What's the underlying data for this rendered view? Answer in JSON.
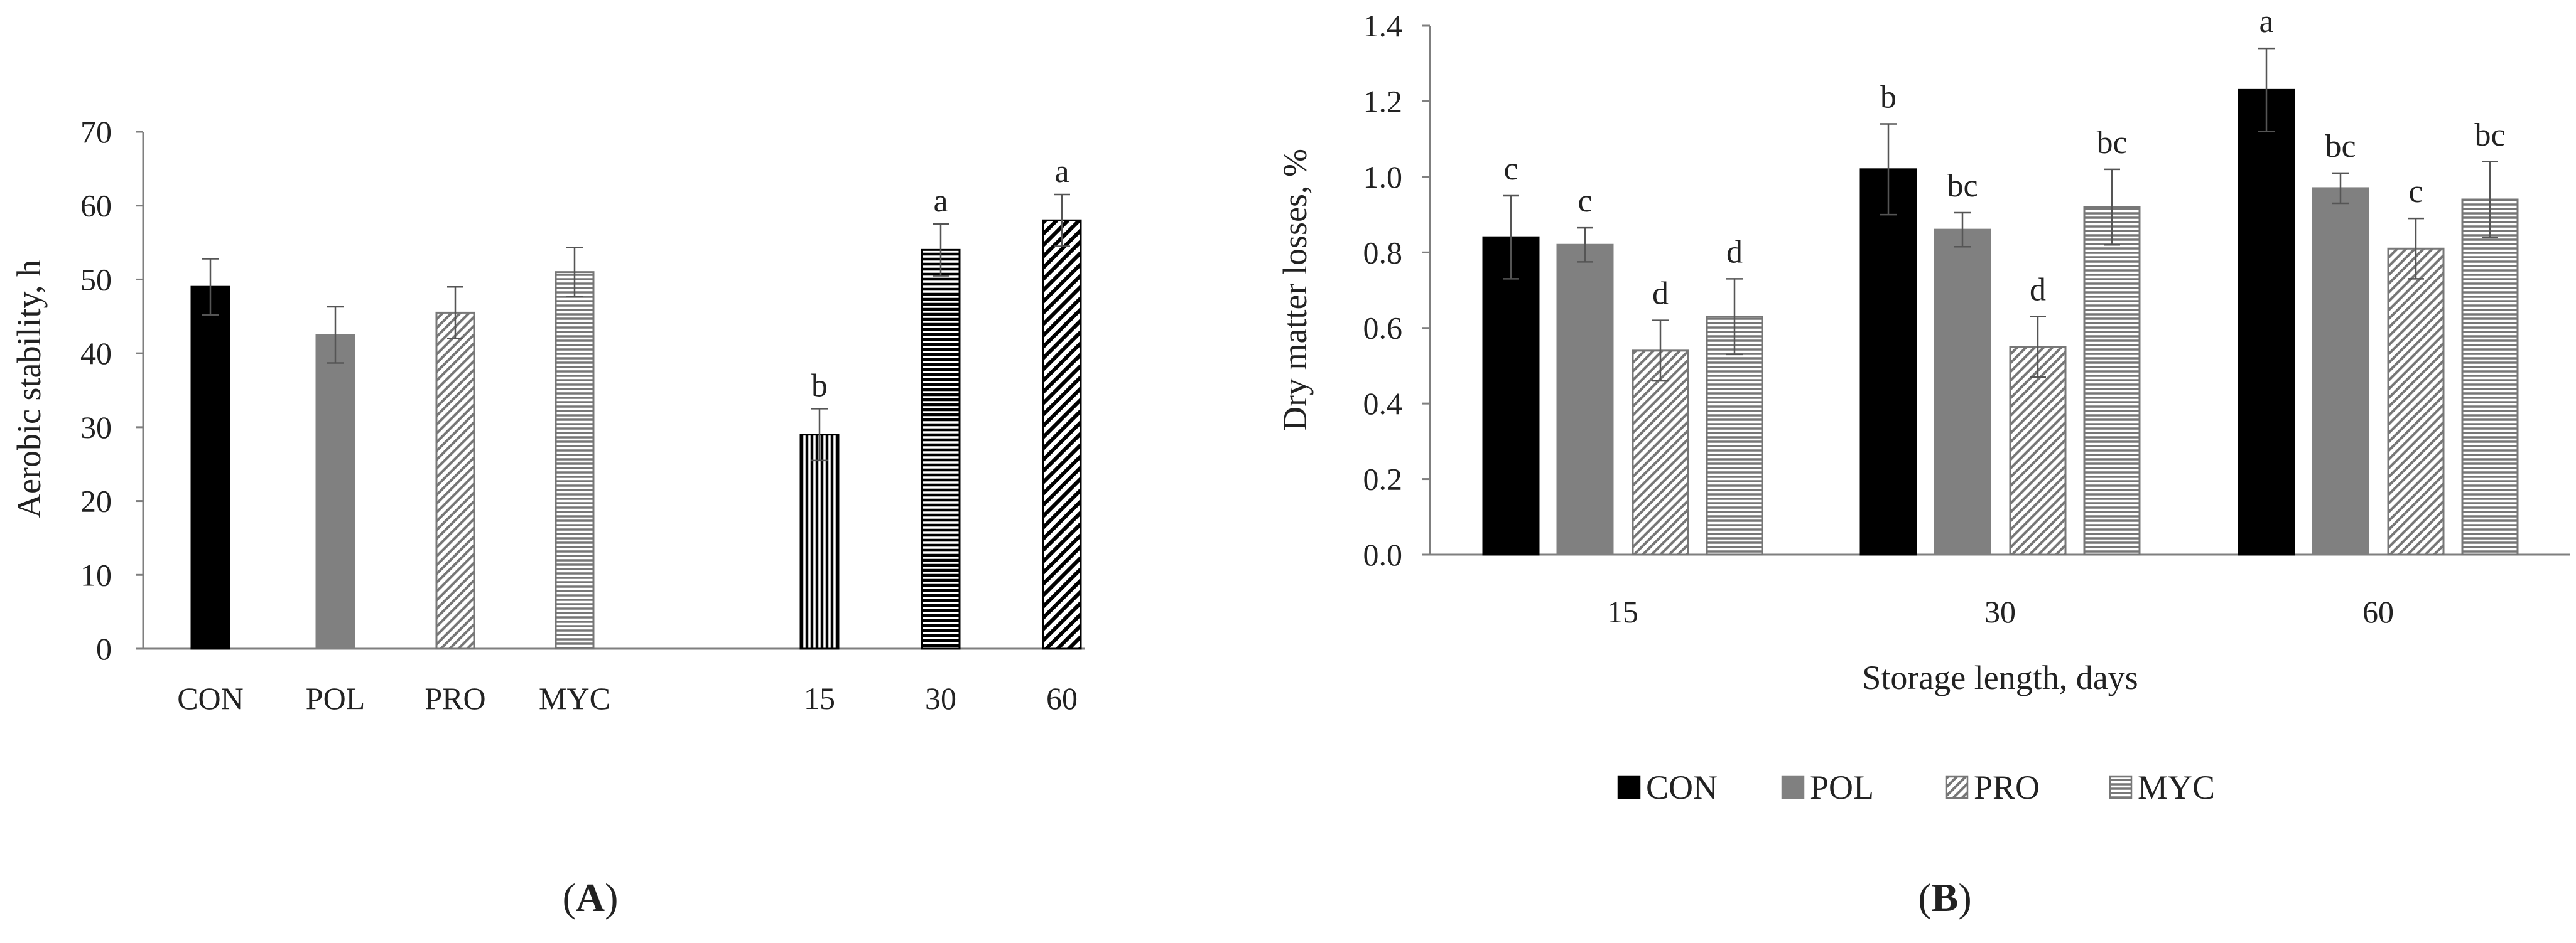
{
  "colors": {
    "con": "#000000",
    "pol": "#808080",
    "axis": "#7f7f7f",
    "pattern_stroke": "#777777"
  },
  "panel_labels": {
    "a": "A",
    "b": "B"
  },
  "chart_data": [
    {
      "id": "A",
      "type": "bar",
      "title": "",
      "xlabel": "",
      "ylabel": "Aerobic stability, h",
      "ylim": [
        0,
        70
      ],
      "yticks": [
        "0",
        "10",
        "20",
        "30",
        "40",
        "50",
        "60",
        "70"
      ],
      "grid": false,
      "groups": [
        {
          "name": "treatment",
          "categories": [
            "CON",
            "POL",
            "PRO",
            "MYC"
          ],
          "values": [
            49,
            42.5,
            45.5,
            51
          ],
          "errors": [
            3.8,
            3.8,
            3.5,
            3.3
          ],
          "sig_labels": [
            "",
            "",
            "",
            ""
          ],
          "fills": [
            "solid-black",
            "solid-gray",
            "diag-left",
            "horiz-gray"
          ]
        },
        {
          "name": "storage length",
          "categories": [
            "15",
            "30",
            "60"
          ],
          "values": [
            29,
            54,
            58
          ],
          "errors": [
            3.5,
            3.5,
            3.5
          ],
          "sig_labels": [
            "b",
            "a",
            "a"
          ],
          "fills": [
            "vert-black",
            "horiz-black",
            "diag-black"
          ]
        }
      ]
    },
    {
      "id": "B",
      "type": "bar",
      "title": "",
      "xlabel": "Storage length, days",
      "ylabel": "Dry matter losses, %",
      "ylim": [
        0,
        1.4
      ],
      "yticks": [
        "0.0",
        "0.2",
        "0.4",
        "0.6",
        "0.8",
        "1.0",
        "1.2",
        "1.4"
      ],
      "grid": false,
      "categories": [
        "15",
        "30",
        "60"
      ],
      "series": [
        {
          "name": "CON",
          "fill": "solid-black",
          "values": [
            0.84,
            1.02,
            1.23
          ],
          "errors": [
            0.11,
            0.12,
            0.11
          ],
          "sig_labels": [
            "c",
            "b",
            "a"
          ]
        },
        {
          "name": "POL",
          "fill": "solid-gray",
          "values": [
            0.82,
            0.86,
            0.97
          ],
          "errors": [
            0.045,
            0.045,
            0.04
          ],
          "sig_labels": [
            "c",
            "bc",
            "bc"
          ]
        },
        {
          "name": "PRO",
          "fill": "diag-left",
          "values": [
            0.54,
            0.55,
            0.81
          ],
          "errors": [
            0.08,
            0.08,
            0.08
          ],
          "sig_labels": [
            "d",
            "d",
            "c"
          ]
        },
        {
          "name": "MYC",
          "fill": "horiz-gray",
          "values": [
            0.63,
            0.92,
            0.94
          ],
          "errors": [
            0.1,
            0.1,
            0.1
          ],
          "sig_labels": [
            "d",
            "bc",
            "bc"
          ]
        }
      ],
      "legend": {
        "placement": "bottom",
        "entries": [
          "CON",
          "POL",
          "PRO",
          "MYC"
        ]
      }
    }
  ]
}
